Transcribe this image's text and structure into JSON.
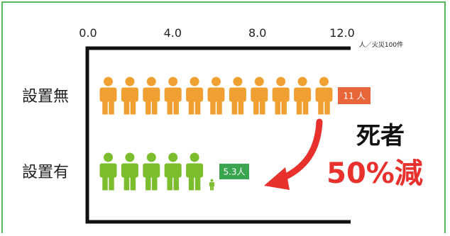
{
  "chart_data": {
    "type": "pictograph",
    "unit": "人／火災100件",
    "xlim": [
      0,
      12
    ],
    "xticks": [
      {
        "value": 0,
        "label": "0.0"
      },
      {
        "value": 4,
        "label": "4.0"
      },
      {
        "value": 8,
        "label": "8.0"
      },
      {
        "value": 12,
        "label": "12.0"
      }
    ],
    "categories": [
      "設置無",
      "設置有"
    ],
    "values": [
      11,
      5.3
    ],
    "value_labels": [
      "11 人",
      "5.3人"
    ],
    "colors": [
      "#f0a030",
      "#7cbd2e"
    ],
    "label_colors": [
      "#e8663a",
      "#3aa44f"
    ]
  },
  "annotation": {
    "line1": "死者",
    "line2": "50%減",
    "line1_color": "#111111",
    "line2_color": "#e8312c",
    "arrow_color": "#e8312c"
  },
  "frame_color": "#5cb85c"
}
